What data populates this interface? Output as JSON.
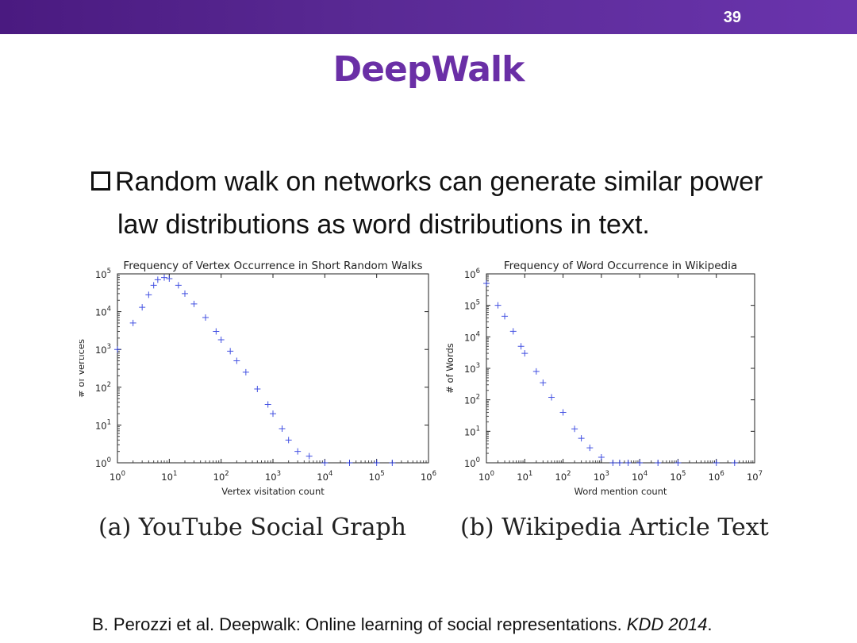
{
  "slide": {
    "number": "39",
    "title": "DeepWalk",
    "bullet_line1": "Random walk on networks can generate similar power",
    "bullet_line2": "law distributions as word distributions in text.",
    "caption_a": "(a) YouTube Social Graph",
    "caption_b": "(b) Wikipedia Article Text",
    "citation_main": "B. Perozzi et al. Deepwalk: Online learning of social representations. ",
    "citation_venue": "KDD 2014",
    "citation_end": "."
  },
  "colors": {
    "bar": "#5b2a96",
    "title": "#6a2fa6",
    "marker": "#2233dd"
  },
  "chart_data": [
    {
      "type": "scatter",
      "title": "Frequency of Vertex Occurrence in Short Random Walks",
      "xlabel": "Vertex visitation count",
      "ylabel": "# of Vertices",
      "xscale": "log",
      "yscale": "log",
      "xlim": [
        1,
        1000000
      ],
      "ylim": [
        1,
        100000
      ],
      "xtick_labels": [
        "10^0",
        "10^1",
        "10^2",
        "10^3",
        "10^4",
        "10^5",
        "10^6"
      ],
      "ytick_labels": [
        "10^0",
        "10^1",
        "10^2",
        "10^3",
        "10^4",
        "10^5"
      ],
      "marker": "+",
      "series": [
        {
          "x": [
            1,
            2,
            3,
            4,
            5,
            6,
            8,
            10,
            15,
            20,
            30,
            50,
            80,
            100,
            150,
            200,
            300,
            500,
            800,
            1000,
            1500,
            2000,
            3000,
            5000,
            10000,
            30000,
            100000,
            200000
          ],
          "y": [
            1000,
            5000,
            13000,
            28000,
            50000,
            70000,
            80000,
            75000,
            50000,
            30000,
            16000,
            7000,
            3000,
            1800,
            900,
            500,
            250,
            90,
            35,
            20,
            8,
            4,
            2,
            1.5,
            1,
            1,
            1,
            1
          ]
        }
      ]
    },
    {
      "type": "scatter",
      "title": "Frequency of Word Occurrence in Wikipedia",
      "xlabel": "Word mention count",
      "ylabel": "# of Words",
      "xscale": "log",
      "yscale": "log",
      "xlim": [
        1,
        10000000
      ],
      "ylim": [
        1,
        1000000
      ],
      "xtick_labels": [
        "10^0",
        "10^1",
        "10^2",
        "10^3",
        "10^4",
        "10^5",
        "10^6",
        "10^7"
      ],
      "ytick_labels": [
        "10^0",
        "10^1",
        "10^2",
        "10^3",
        "10^4",
        "10^5",
        "10^6"
      ],
      "marker": "+",
      "series": [
        {
          "x": [
            1,
            2,
            3,
            5,
            8,
            10,
            20,
            30,
            50,
            100,
            200,
            300,
            500,
            1000,
            2000,
            3000,
            5000,
            10000,
            30000,
            100000,
            1000000,
            3000000
          ],
          "y": [
            500000,
            100000,
            45000,
            15000,
            5000,
            3000,
            800,
            350,
            120,
            40,
            12,
            6,
            3,
            1.5,
            1,
            1,
            1,
            1,
            1,
            1,
            1,
            1
          ]
        }
      ]
    }
  ]
}
